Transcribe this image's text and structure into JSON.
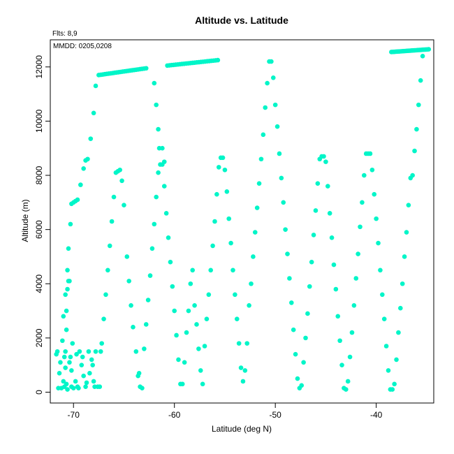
{
  "chart_data": {
    "type": "scatter",
    "title": "Altitude vs. Latitude",
    "xlabel": "Latitude (deg N)",
    "ylabel": "Altitude (m)",
    "xlim": [
      -72.3,
      -34.3
    ],
    "ylim": [
      -400,
      13000
    ],
    "x_ticks": [
      -70,
      -60,
      -50,
      -40
    ],
    "y_ticks": [
      0,
      2000,
      4000,
      6000,
      8000,
      10000,
      12000
    ],
    "x_tick_labels": [
      "-70",
      "-60",
      "-50",
      "-40"
    ],
    "y_tick_labels": [
      "0",
      "2000",
      "4000",
      "6000",
      "8000",
      "10000",
      "12000"
    ],
    "annotations": [
      "Flts: 8,9",
      "MMDD: 0205,0208"
    ],
    "marker_color": "#00f5c8",
    "grid": false,
    "cruise_segments": [
      {
        "x": [
          -67.5,
          -62.8
        ],
        "y": [
          11700,
          11950
        ]
      },
      {
        "x": [
          -60.7,
          -55.7
        ],
        "y": [
          12050,
          12250
        ]
      },
      {
        "x": [
          -38.5,
          -34.8
        ],
        "y": [
          12550,
          12650
        ]
      }
    ],
    "points": [
      [
        -71.7,
        1400
      ],
      [
        -71.6,
        1500
      ],
      [
        -71.5,
        150
      ],
      [
        -71.4,
        700
      ],
      [
        -71.3,
        1100
      ],
      [
        -71.2,
        150
      ],
      [
        -71.1,
        1900
      ],
      [
        -71.0,
        400
      ],
      [
        -71.0,
        2800
      ],
      [
        -70.9,
        1300
      ],
      [
        -70.8,
        1500
      ],
      [
        -70.8,
        3600
      ],
      [
        -70.8,
        900
      ],
      [
        -70.7,
        2300
      ],
      [
        -70.7,
        3000
      ],
      [
        -70.6,
        3800
      ],
      [
        -70.6,
        4500
      ],
      [
        -70.5,
        4100
      ],
      [
        -70.5,
        5300
      ],
      [
        -70.4,
        4100
      ],
      [
        -70.3,
        6200
      ],
      [
        -70.2,
        6950
      ],
      [
        -70.0,
        7000
      ],
      [
        -69.8,
        7050
      ],
      [
        -69.6,
        7100
      ],
      [
        -70.9,
        200
      ],
      [
        -70.7,
        300
      ],
      [
        -70.6,
        100
      ],
      [
        -70.4,
        1100
      ],
      [
        -70.3,
        1300
      ],
      [
        -70.2,
        800
      ],
      [
        -70.2,
        200
      ],
      [
        -70.1,
        1800
      ],
      [
        -70.0,
        150
      ],
      [
        -69.8,
        400
      ],
      [
        -69.7,
        1400
      ],
      [
        -69.6,
        200
      ],
      [
        -69.5,
        150
      ],
      [
        -69.4,
        1500
      ],
      [
        -69.2,
        1000
      ],
      [
        -69.1,
        1300
      ],
      [
        -69.0,
        600
      ],
      [
        -68.8,
        200
      ],
      [
        -68.7,
        350
      ],
      [
        -68.5,
        1500
      ],
      [
        -68.4,
        700
      ],
      [
        -68.2,
        1200
      ],
      [
        -68.1,
        1000
      ],
      [
        -68.0,
        400
      ],
      [
        -67.9,
        200
      ],
      [
        -67.8,
        1500
      ],
      [
        -67.6,
        200
      ],
      [
        -67.4,
        200
      ],
      [
        -67.3,
        1500
      ],
      [
        -67.2,
        1800
      ],
      [
        -69.3,
        7650
      ],
      [
        -69.0,
        8250
      ],
      [
        -68.8,
        8550
      ],
      [
        -68.6,
        8600
      ],
      [
        -68.3,
        9350
      ],
      [
        -68.0,
        10300
      ],
      [
        -67.8,
        11300
      ],
      [
        -67.0,
        2700
      ],
      [
        -66.8,
        3600
      ],
      [
        -66.6,
        4500
      ],
      [
        -66.4,
        5400
      ],
      [
        -66.2,
        6300
      ],
      [
        -66.0,
        7200
      ],
      [
        -65.8,
        8100
      ],
      [
        -65.6,
        8150
      ],
      [
        -65.4,
        8200
      ],
      [
        -65.2,
        7800
      ],
      [
        -65.0,
        6900
      ],
      [
        -64.7,
        5000
      ],
      [
        -64.5,
        4100
      ],
      [
        -64.3,
        3200
      ],
      [
        -64.1,
        2400
      ],
      [
        -63.8,
        1500
      ],
      [
        -63.6,
        600
      ],
      [
        -63.4,
        200
      ],
      [
        -63.2,
        150
      ],
      [
        -63.5,
        700
      ],
      [
        -63.0,
        1600
      ],
      [
        -62.8,
        2500
      ],
      [
        -62.6,
        3400
      ],
      [
        -62.4,
        4300
      ],
      [
        -62.2,
        5300
      ],
      [
        -62.0,
        6200
      ],
      [
        -61.8,
        7200
      ],
      [
        -61.6,
        8100
      ],
      [
        -61.4,
        8400
      ],
      [
        -61.2,
        8400
      ],
      [
        -61.0,
        8500
      ],
      [
        -61.5,
        9000
      ],
      [
        -61.2,
        9000
      ],
      [
        -61.6,
        9700
      ],
      [
        -61.8,
        10600
      ],
      [
        -62.0,
        11400
      ],
      [
        -61.0,
        7600
      ],
      [
        -60.8,
        6600
      ],
      [
        -60.6,
        5700
      ],
      [
        -60.4,
        4800
      ],
      [
        -60.2,
        3900
      ],
      [
        -60.0,
        3000
      ],
      [
        -59.8,
        2100
      ],
      [
        -59.6,
        1200
      ],
      [
        -59.4,
        300
      ],
      [
        -59.2,
        300
      ],
      [
        -59.0,
        1100
      ],
      [
        -58.8,
        2200
      ],
      [
        -58.6,
        3000
      ],
      [
        -58.4,
        4000
      ],
      [
        -58.2,
        4500
      ],
      [
        -58.0,
        3200
      ],
      [
        -57.8,
        2500
      ],
      [
        -57.6,
        1600
      ],
      [
        -57.4,
        800
      ],
      [
        -57.2,
        300
      ],
      [
        -57.0,
        1700
      ],
      [
        -56.8,
        2700
      ],
      [
        -56.6,
        3600
      ],
      [
        -56.4,
        4500
      ],
      [
        -56.2,
        5400
      ],
      [
        -56.0,
        6300
      ],
      [
        -55.8,
        7300
      ],
      [
        -55.6,
        8300
      ],
      [
        -55.4,
        8650
      ],
      [
        -55.2,
        8650
      ],
      [
        -55.0,
        8200
      ],
      [
        -54.8,
        7400
      ],
      [
        -54.6,
        6400
      ],
      [
        -54.4,
        5500
      ],
      [
        -54.2,
        4500
      ],
      [
        -54.0,
        3600
      ],
      [
        -53.8,
        2700
      ],
      [
        -53.6,
        1800
      ],
      [
        -53.4,
        900
      ],
      [
        -53.2,
        400
      ],
      [
        -53.0,
        800
      ],
      [
        -52.8,
        1800
      ],
      [
        -52.6,
        3200
      ],
      [
        -52.4,
        4000
      ],
      [
        -52.2,
        5000
      ],
      [
        -52.0,
        5900
      ],
      [
        -51.8,
        6800
      ],
      [
        -51.6,
        7700
      ],
      [
        -51.4,
        8600
      ],
      [
        -51.2,
        9500
      ],
      [
        -51.0,
        10500
      ],
      [
        -50.8,
        11400
      ],
      [
        -50.6,
        12200
      ],
      [
        -50.4,
        12200
      ],
      [
        -50.2,
        11600
      ],
      [
        -50.0,
        10600
      ],
      [
        -49.8,
        9800
      ],
      [
        -49.6,
        8800
      ],
      [
        -49.4,
        7900
      ],
      [
        -49.2,
        7000
      ],
      [
        -49.0,
        6000
      ],
      [
        -48.8,
        5100
      ],
      [
        -48.6,
        4200
      ],
      [
        -48.4,
        3300
      ],
      [
        -48.2,
        2300
      ],
      [
        -48.0,
        1400
      ],
      [
        -47.8,
        500
      ],
      [
        -47.6,
        150
      ],
      [
        -47.4,
        250
      ],
      [
        -47.2,
        1100
      ],
      [
        -47.0,
        2000
      ],
      [
        -46.8,
        2900
      ],
      [
        -46.6,
        3900
      ],
      [
        -46.4,
        4800
      ],
      [
        -46.2,
        5800
      ],
      [
        -46.0,
        6700
      ],
      [
        -45.8,
        7700
      ],
      [
        -45.6,
        8600
      ],
      [
        -45.4,
        8700
      ],
      [
        -45.2,
        8700
      ],
      [
        -45.0,
        8500
      ],
      [
        -44.8,
        7600
      ],
      [
        -44.6,
        6600
      ],
      [
        -44.4,
        5700
      ],
      [
        -44.2,
        4700
      ],
      [
        -44.0,
        3800
      ],
      [
        -43.8,
        2800
      ],
      [
        -43.6,
        1900
      ],
      [
        -43.4,
        1000
      ],
      [
        -43.2,
        150
      ],
      [
        -43.0,
        100
      ],
      [
        -42.8,
        400
      ],
      [
        -42.6,
        1300
      ],
      [
        -42.4,
        2200
      ],
      [
        -42.2,
        3200
      ],
      [
        -42.0,
        4200
      ],
      [
        -41.8,
        5100
      ],
      [
        -41.6,
        6100
      ],
      [
        -41.4,
        7000
      ],
      [
        -41.2,
        8000
      ],
      [
        -41.0,
        8800
      ],
      [
        -40.8,
        8800
      ],
      [
        -40.6,
        8800
      ],
      [
        -40.4,
        8200
      ],
      [
        -40.2,
        7300
      ],
      [
        -40.0,
        6400
      ],
      [
        -39.8,
        5500
      ],
      [
        -39.6,
        4500
      ],
      [
        -39.4,
        3600
      ],
      [
        -39.2,
        2700
      ],
      [
        -39.0,
        1700
      ],
      [
        -38.8,
        800
      ],
      [
        -38.6,
        100
      ],
      [
        -38.4,
        100
      ],
      [
        -38.2,
        300
      ],
      [
        -38.0,
        1200
      ],
      [
        -37.8,
        2200
      ],
      [
        -37.6,
        3100
      ],
      [
        -37.4,
        4000
      ],
      [
        -37.2,
        5000
      ],
      [
        -37.0,
        5900
      ],
      [
        -36.8,
        6900
      ],
      [
        -36.6,
        7900
      ],
      [
        -36.4,
        8000
      ],
      [
        -36.2,
        8900
      ],
      [
        -36.0,
        9700
      ],
      [
        -35.8,
        10600
      ],
      [
        -35.6,
        11500
      ],
      [
        -35.4,
        12400
      ]
    ]
  }
}
